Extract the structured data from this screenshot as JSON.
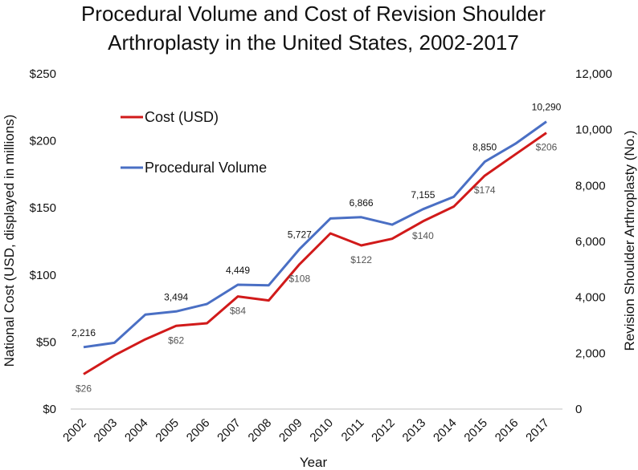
{
  "chart_data": {
    "type": "line",
    "title_lines": [
      "Procedural Volume and Cost of Revision Shoulder",
      "Arthroplasty in the United States, 2002-2017"
    ],
    "xlabel": "Year",
    "ylabel_left": "National Cost (USD, displayed in millions)",
    "ylabel_right": "Revision Shoulder Arthroplasty (No.)",
    "categories": [
      "2002",
      "2003",
      "2004",
      "2005",
      "2006",
      "2007",
      "2008",
      "2009",
      "2010",
      "2011",
      "2012",
      "2013",
      "2014",
      "2015",
      "2016",
      "2017"
    ],
    "left_axis": {
      "min": 0,
      "max": 250,
      "ticks": [
        0,
        50,
        100,
        150,
        200,
        250
      ],
      "tick_labels": [
        "$0",
        "$50",
        "$100",
        "$150",
        "$200",
        "$250"
      ]
    },
    "right_axis": {
      "min": 0,
      "max": 12000,
      "ticks": [
        0,
        2000,
        4000,
        6000,
        8000,
        10000,
        12000
      ],
      "tick_labels": [
        "0",
        "2,000",
        "4,000",
        "6,000",
        "8,000",
        "10,000",
        "12,000"
      ]
    },
    "series": [
      {
        "name": "Cost (USD)",
        "axis": "left",
        "color": "#d11a1a",
        "values": [
          26,
          40,
          52,
          62,
          64,
          84,
          81,
          108,
          131,
          122,
          127,
          140,
          151,
          174,
          190,
          206
        ],
        "labels": [
          {
            "index": 0,
            "text": "$26"
          },
          {
            "index": 3,
            "text": "$62"
          },
          {
            "index": 5,
            "text": "$84"
          },
          {
            "index": 7,
            "text": "$108"
          },
          {
            "index": 9,
            "text": "$122"
          },
          {
            "index": 11,
            "text": "$140"
          },
          {
            "index": 13,
            "text": "$174"
          },
          {
            "index": 15,
            "text": "$206"
          }
        ]
      },
      {
        "name": "Procedural Volume",
        "axis": "right",
        "color": "#4a6fc4",
        "values": [
          2216,
          2370,
          3380,
          3494,
          3760,
          4449,
          4430,
          5727,
          6820,
          6866,
          6600,
          7155,
          7600,
          8850,
          9500,
          10290
        ],
        "labels": [
          {
            "index": 0,
            "text": "2,216"
          },
          {
            "index": 3,
            "text": "3,494"
          },
          {
            "index": 5,
            "text": "4,449"
          },
          {
            "index": 7,
            "text": "5,727"
          },
          {
            "index": 9,
            "text": "6,866"
          },
          {
            "index": 11,
            "text": "7,155"
          },
          {
            "index": 13,
            "text": "8,850"
          },
          {
            "index": 15,
            "text": "10,290"
          }
        ]
      }
    ],
    "legend_position": "upper-left",
    "grid": false
  }
}
